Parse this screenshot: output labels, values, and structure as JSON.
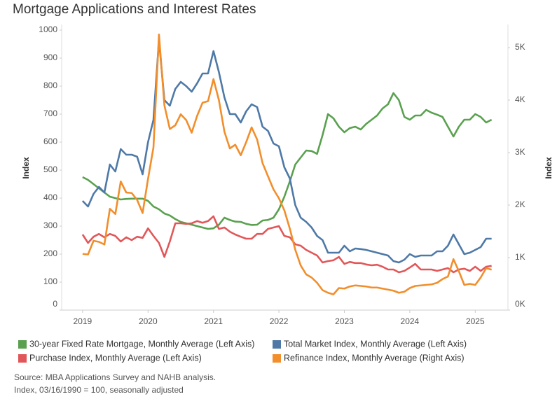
{
  "chart_data": {
    "type": "line",
    "title": "Mortgage Applications and Interest Rates",
    "ylabel": "Index",
    "y2label": "Index",
    "x": [
      2019,
      2019.083,
      2019.167,
      2019.25,
      2019.333,
      2019.417,
      2019.5,
      2019.583,
      2019.667,
      2019.75,
      2019.833,
      2019.917,
      2020,
      2020.083,
      2020.167,
      2020.25,
      2020.333,
      2020.417,
      2020.5,
      2020.583,
      2020.667,
      2020.75,
      2020.833,
      2020.917,
      2021,
      2021.083,
      2021.167,
      2021.25,
      2021.333,
      2021.417,
      2021.5,
      2021.583,
      2021.667,
      2021.75,
      2021.833,
      2021.917,
      2022,
      2022.083,
      2022.167,
      2022.25,
      2022.333,
      2022.417,
      2022.5,
      2022.583,
      2022.667,
      2022.75,
      2022.833,
      2022.917,
      2023,
      2023.083,
      2023.167,
      2023.25,
      2023.333,
      2023.417,
      2023.5,
      2023.583,
      2023.667,
      2023.75,
      2023.833,
      2023.917,
      2024,
      2024.083,
      2024.167,
      2024.25,
      2024.333,
      2024.417,
      2024.5,
      2024.583,
      2024.667,
      2024.75,
      2024.833,
      2024.917,
      2025,
      2025.083,
      2025.167,
      2025.25
    ],
    "xlim": [
      2018.68,
      2025.5
    ],
    "xticks": [
      2019,
      2020,
      2021,
      2022,
      2023,
      2024,
      2025
    ],
    "ylim": [
      0,
      1020
    ],
    "yticks": [
      0,
      100,
      200,
      300,
      400,
      500,
      600,
      700,
      800,
      900,
      1000
    ],
    "y2lim": [
      0,
      5440
    ],
    "y2ticks": [
      {
        "value": 0,
        "label": "0K"
      },
      {
        "value": 1000,
        "label": "1K"
      },
      {
        "value": 2000,
        "label": "2K"
      },
      {
        "value": 3000,
        "label": "3K"
      },
      {
        "value": 4000,
        "label": "4K"
      },
      {
        "value": 5000,
        "label": "5K"
      }
    ],
    "grid": false,
    "series": [
      {
        "name": "30-year Fixed Rate Mortgage, Monthly Average (Left Axis)",
        "color": "#59a14f",
        "values": [
          475,
          465,
          450,
          435,
          420,
          405,
          400,
          395,
          397,
          398,
          398,
          398,
          390,
          370,
          360,
          345,
          338,
          325,
          315,
          310,
          305,
          300,
          295,
          290,
          292,
          305,
          330,
          322,
          316,
          315,
          308,
          304,
          305,
          320,
          322,
          330,
          360,
          405,
          460,
          520,
          545,
          570,
          568,
          558,
          625,
          700,
          685,
          655,
          635,
          650,
          655,
          645,
          665,
          680,
          695,
          720,
          735,
          775,
          750,
          690,
          680,
          695,
          695,
          715,
          705,
          698,
          690,
          655,
          620,
          655,
          680,
          680,
          700,
          690,
          670,
          680
        ]
      },
      {
        "name": "Total Market Index, Monthly Average (Left Axis)",
        "color": "#4e79a7",
        "values": [
          390,
          370,
          415,
          440,
          420,
          520,
          495,
          575,
          555,
          555,
          548,
          485,
          600,
          680,
          965,
          750,
          730,
          790,
          815,
          800,
          780,
          810,
          845,
          845,
          925,
          850,
          760,
          700,
          700,
          670,
          710,
          735,
          725,
          655,
          640,
          595,
          585,
          510,
          470,
          375,
          330,
          315,
          295,
          265,
          250,
          205,
          205,
          205,
          230,
          210,
          220,
          218,
          215,
          210,
          205,
          200,
          195,
          175,
          170,
          180,
          200,
          190,
          195,
          195,
          195,
          210,
          210,
          230,
          270,
          235,
          200,
          205,
          215,
          225,
          255,
          255
        ]
      },
      {
        "name": "Purchase Index, Monthly Average (Left Axis)",
        "color": "#e15759",
        "values": [
          270,
          240,
          262,
          272,
          260,
          272,
          265,
          245,
          260,
          250,
          262,
          258,
          292,
          265,
          240,
          190,
          245,
          310,
          310,
          308,
          310,
          318,
          312,
          318,
          335,
          290,
          295,
          280,
          270,
          262,
          255,
          255,
          272,
          272,
          290,
          295,
          300,
          265,
          260,
          235,
          230,
          215,
          205,
          195,
          170,
          175,
          178,
          190,
          165,
          172,
          168,
          168,
          163,
          160,
          162,
          155,
          145,
          145,
          135,
          140,
          152,
          165,
          145,
          145,
          145,
          140,
          145,
          150,
          135,
          145,
          148,
          140,
          155,
          140,
          155,
          158
        ]
      },
      {
        "name": "Refinance Index, Monthly Average (Right Axis)",
        "color": "#f28e2b",
        "axis": "y2",
        "values": [
          1070,
          1060,
          1320,
          1300,
          1250,
          1930,
          1830,
          2450,
          2240,
          2230,
          2100,
          1850,
          2500,
          3100,
          5250,
          3900,
          3450,
          3520,
          3730,
          3620,
          3380,
          3700,
          3950,
          3980,
          4400,
          4000,
          3400,
          3080,
          3150,
          2950,
          3200,
          3480,
          3250,
          2800,
          2550,
          2300,
          2130,
          1900,
          1550,
          1150,
          850,
          680,
          620,
          520,
          380,
          330,
          300,
          420,
          410,
          450,
          470,
          460,
          450,
          430,
          430,
          410,
          390,
          370,
          330,
          350,
          420,
          460,
          470,
          480,
          490,
          520,
          590,
          640,
          970,
          740,
          480,
          500,
          480,
          620,
          800,
          770
        ]
      }
    ],
    "source": [
      "Source: MBA Applications Survey and NAHB analysis.",
      "Index, 03/16/1990 = 100, seasonally adjusted"
    ]
  }
}
